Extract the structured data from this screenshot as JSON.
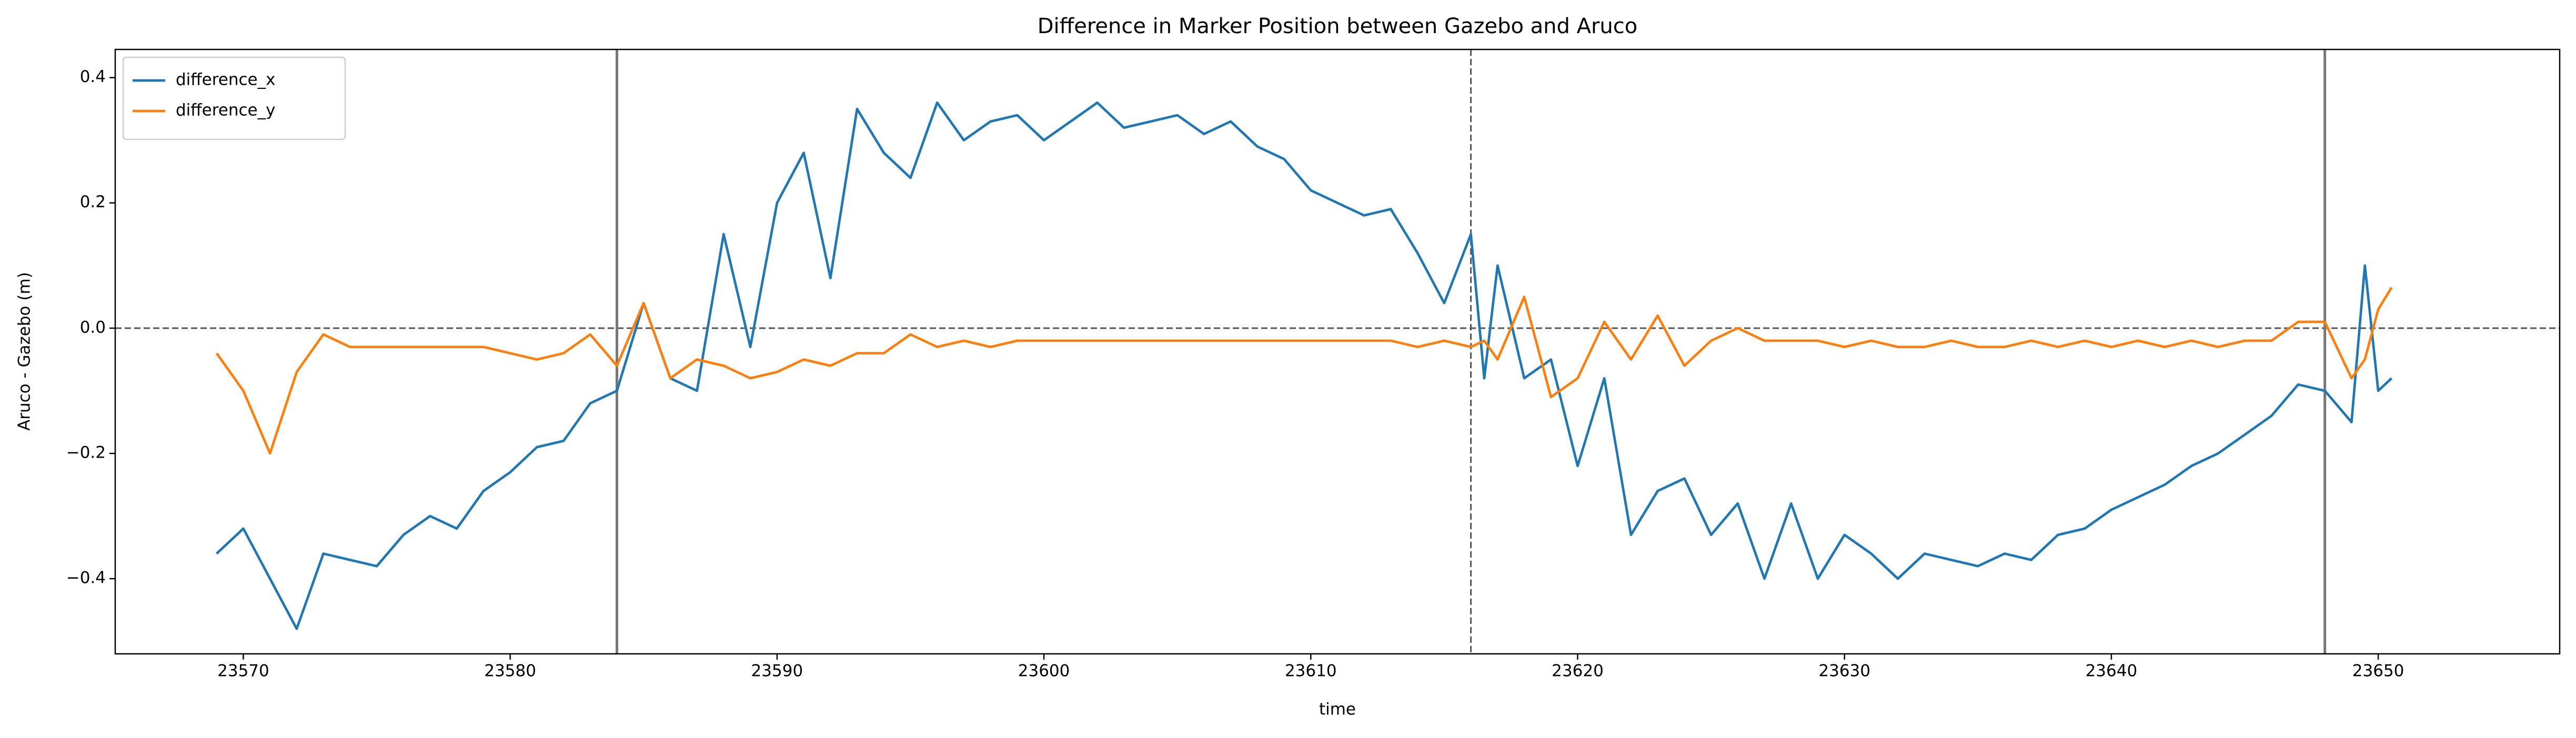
{
  "chart_data": {
    "type": "line",
    "title": "Difference in Marker Position between Gazebo and Aruco",
    "xlabel": "time",
    "ylabel": "Aruco - Gazebo (m)",
    "x": [
      23569,
      23570,
      23571,
      23572,
      23573,
      23574,
      23575,
      23576,
      23577,
      23578,
      23579,
      23580,
      23581,
      23582,
      23583,
      23584,
      23585,
      23586,
      23587,
      23588,
      23589,
      23590,
      23591,
      23592,
      23593,
      23594,
      23595,
      23596,
      23597,
      23598,
      23599,
      23600,
      23601,
      23602,
      23603,
      23604,
      23605,
      23606,
      23607,
      23608,
      23609,
      23610,
      23611,
      23612,
      23613,
      23614,
      23615,
      23616,
      23616.5,
      23617,
      23618,
      23619,
      23620,
      23621,
      23622,
      23623,
      23624,
      23625,
      23626,
      23627,
      23628,
      23629,
      23630,
      23631,
      23632,
      23633,
      23634,
      23635,
      23636,
      23637,
      23638,
      23639,
      23640,
      23641,
      23642,
      23643,
      23644,
      23645,
      23646,
      23647,
      23648,
      23649,
      23649.5,
      23650,
      23650.5
    ],
    "series": [
      {
        "name": "difference_x",
        "color": "#1f77b4",
        "values": [
          -0.36,
          -0.32,
          -0.4,
          -0.48,
          -0.36,
          -0.37,
          -0.38,
          -0.33,
          -0.3,
          -0.32,
          -0.26,
          -0.23,
          -0.19,
          -0.18,
          -0.12,
          -0.1,
          0.04,
          -0.08,
          -0.1,
          0.15,
          -0.03,
          0.2,
          0.28,
          0.08,
          0.35,
          0.28,
          0.24,
          0.36,
          0.3,
          0.33,
          0.34,
          0.3,
          0.33,
          0.36,
          0.32,
          0.33,
          0.34,
          0.31,
          0.33,
          0.29,
          0.27,
          0.22,
          0.2,
          0.18,
          0.19,
          0.12,
          0.04,
          0.15,
          -0.08,
          0.1,
          -0.08,
          -0.05,
          -0.22,
          -0.08,
          -0.33,
          -0.26,
          -0.24,
          -0.33,
          -0.28,
          -0.4,
          -0.28,
          -0.4,
          -0.33,
          -0.36,
          -0.4,
          -0.36,
          -0.37,
          -0.38,
          -0.36,
          -0.37,
          -0.33,
          -0.32,
          -0.29,
          -0.27,
          -0.25,
          -0.22,
          -0.2,
          -0.17,
          -0.14,
          -0.09,
          -0.1,
          -0.15,
          0.1,
          -0.1,
          -0.08
        ]
      },
      {
        "name": "difference_y",
        "color": "#ff7f0e",
        "values": [
          -0.04,
          -0.1,
          -0.2,
          -0.07,
          -0.01,
          -0.03,
          -0.03,
          -0.03,
          -0.03,
          -0.03,
          -0.03,
          -0.04,
          -0.05,
          -0.04,
          -0.01,
          -0.06,
          0.04,
          -0.08,
          -0.05,
          -0.06,
          -0.08,
          -0.07,
          -0.05,
          -0.06,
          -0.04,
          -0.04,
          -0.01,
          -0.03,
          -0.02,
          -0.03,
          -0.02,
          -0.02,
          -0.02,
          -0.02,
          -0.02,
          -0.02,
          -0.02,
          -0.02,
          -0.02,
          -0.02,
          -0.02,
          -0.02,
          -0.02,
          -0.02,
          -0.02,
          -0.03,
          -0.02,
          -0.03,
          -0.02,
          -0.05,
          0.05,
          -0.11,
          -0.08,
          0.01,
          -0.05,
          0.02,
          -0.06,
          -0.02,
          0.0,
          -0.02,
          -0.02,
          -0.02,
          -0.03,
          -0.02,
          -0.03,
          -0.03,
          -0.02,
          -0.03,
          -0.03,
          -0.02,
          -0.03,
          -0.02,
          -0.03,
          -0.02,
          -0.03,
          -0.02,
          -0.03,
          -0.02,
          -0.02,
          0.01,
          0.01,
          -0.08,
          -0.05,
          0.03,
          0.065
        ]
      }
    ],
    "xlim": [
      23565.2,
      23656.8
    ],
    "ylim": [
      -0.52,
      0.445
    ],
    "xticks": [
      23570,
      23580,
      23590,
      23600,
      23610,
      23620,
      23630,
      23640,
      23650
    ],
    "yticks": [
      {
        "value": -0.4,
        "label": "−0.4"
      },
      {
        "value": -0.2,
        "label": "−0.2"
      },
      {
        "value": 0,
        "label": "0.0"
      },
      0.2,
      0.4
    ],
    "hlines": [
      {
        "y": 0,
        "style": "dashed"
      }
    ],
    "vlines": [
      {
        "x": 23584,
        "style": "solid"
      },
      {
        "x": 23616,
        "style": "dashed"
      },
      {
        "x": 23648,
        "style": "solid"
      }
    ],
    "legend": "upper left"
  }
}
